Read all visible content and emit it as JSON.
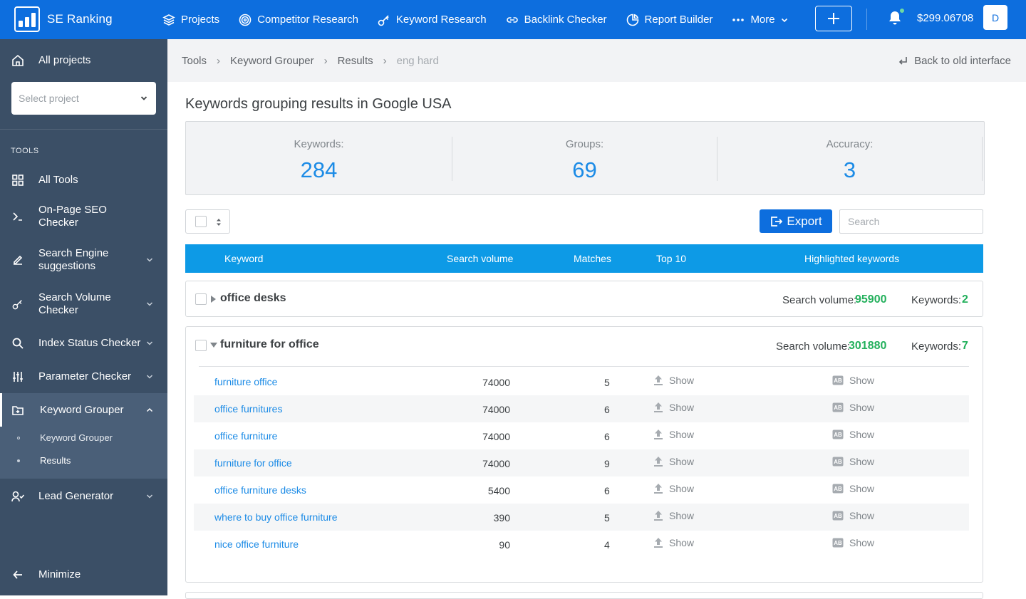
{
  "brand": {
    "name": "SE Ranking"
  },
  "nav": [
    {
      "label": "Projects",
      "icon": "layers-icon"
    },
    {
      "label": "Competitor Research",
      "icon": "target-icon"
    },
    {
      "label": "Keyword Research",
      "icon": "key-icon"
    },
    {
      "label": "Backlink Checker",
      "icon": "link-icon"
    },
    {
      "label": "Report Builder",
      "icon": "pie-chart-icon"
    },
    {
      "label": "More",
      "icon": "dots-icon"
    }
  ],
  "account": {
    "balance": "$299.06708",
    "avatar": "D"
  },
  "sidebar": {
    "all_projects": "All projects",
    "select_project_placeholder": "Select project",
    "tools_heading": "TOOLS",
    "items": [
      {
        "label": "All Tools"
      },
      {
        "label": "On-Page SEO Checker"
      },
      {
        "label": "Search Engine suggestions"
      },
      {
        "label": "Search Volume Checker"
      },
      {
        "label": "Index Status Checker"
      },
      {
        "label": "Parameter Checker"
      },
      {
        "label": "Keyword Grouper"
      },
      {
        "label": "Lead Generator"
      }
    ],
    "subitems": [
      "Keyword Grouper",
      "Results"
    ],
    "minimize": "Minimize"
  },
  "breadcrumb": [
    "Tools",
    "Keyword Grouper",
    "Results",
    "eng hard"
  ],
  "back_link": "Back to old interface",
  "page_title": "Keywords grouping results in Google USA",
  "stats": [
    {
      "label": "Keywords:",
      "value": "284"
    },
    {
      "label": "Groups:",
      "value": "69"
    },
    {
      "label": "Accuracy:",
      "value": "3"
    }
  ],
  "toolbar": {
    "export_label": "Export",
    "search_placeholder": "Search"
  },
  "table": {
    "headers": [
      "Keyword",
      "Search volume",
      "Matches",
      "Top 10",
      "Highlighted keywords"
    ]
  },
  "groups": [
    {
      "name": "office desks",
      "volume_label": "Search volume:",
      "volume": "95900",
      "keywords_label": "Keywords:",
      "keywords": "2",
      "expanded": false
    },
    {
      "name": "furniture for office",
      "volume_label": "Search volume:",
      "volume": "301880",
      "keywords_label": "Keywords:",
      "keywords": "7",
      "expanded": true,
      "rows": [
        {
          "keyword": "furniture office",
          "volume": "74000",
          "matches": "5",
          "top10": "Show",
          "highlighted": "Show"
        },
        {
          "keyword": "office furnitures",
          "volume": "74000",
          "matches": "6",
          "top10": "Show",
          "highlighted": "Show"
        },
        {
          "keyword": "office furniture",
          "volume": "74000",
          "matches": "6",
          "top10": "Show",
          "highlighted": "Show"
        },
        {
          "keyword": "furniture for office",
          "volume": "74000",
          "matches": "9",
          "top10": "Show",
          "highlighted": "Show"
        },
        {
          "keyword": "office furniture desks",
          "volume": "5400",
          "matches": "6",
          "top10": "Show",
          "highlighted": "Show"
        },
        {
          "keyword": "where to buy office furniture",
          "volume": "390",
          "matches": "5",
          "top10": "Show",
          "highlighted": "Show"
        },
        {
          "keyword": "nice office furniture",
          "volume": "90",
          "matches": "4",
          "top10": "Show",
          "highlighted": "Show"
        }
      ]
    }
  ],
  "colors": {
    "brand_blue": "#0d6ede",
    "header_blue": "#0d9ae6",
    "sidebar": "#3b4f66",
    "green": "#23b05c",
    "link": "#1c8be6"
  }
}
